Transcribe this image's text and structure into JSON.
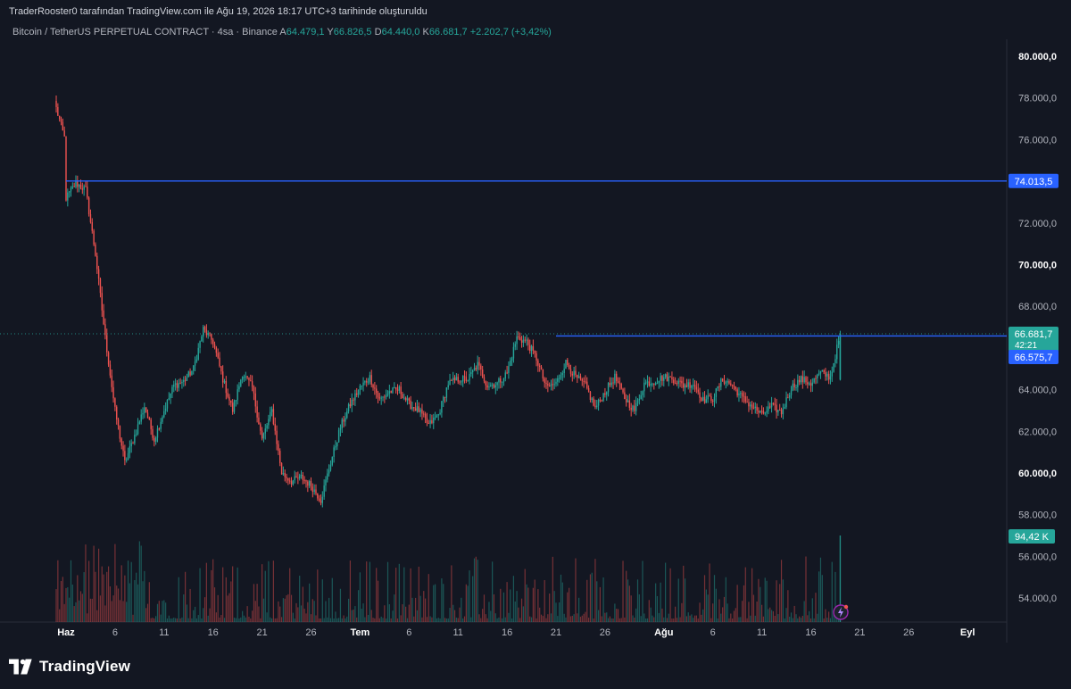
{
  "header": {
    "creator_line": "TraderRooster0 tarafından TradingView.com ile Ağu 19, 2026 18:17 UTC+3 tarihinde oluşturuldu",
    "symbol_line": "Bitcoin / TetherUS PERPETUAL CONTRACT · 4sa · Binance",
    "ohlc": {
      "open_label": "A",
      "open": "64.479,1",
      "high_label": "Y",
      "high": "66.826,5",
      "low_label": "D",
      "low": "64.440,0",
      "close_label": "K",
      "close": "66.681,7",
      "change": "+2.202,7 (+3,42%)"
    }
  },
  "footer": {
    "brand": "TradingView"
  },
  "colors": {
    "background": "#131722",
    "up": "#26a69a",
    "down": "#ef5350",
    "level": "#2962ff"
  },
  "chart_data": {
    "type": "candlestick",
    "y_axis": {
      "ticks": [
        54000,
        56000,
        58000,
        60000,
        62000,
        64000,
        66000,
        68000,
        70000,
        72000,
        74000,
        76000,
        78000,
        80000
      ],
      "tick_labels": [
        "54.000,0",
        "56.000,0",
        "58.000,0",
        "60.000,0",
        "62.000,0",
        "64.000,0",
        "66.000,0",
        "68.000,0",
        "70.000,0",
        "72.000,0",
        "74.000,0",
        "76.000,0",
        "78.000,0",
        "80.000,0"
      ],
      "bold": [
        60000,
        70000,
        80000
      ]
    },
    "x_axis": {
      "ticks": [
        "06-01",
        "06-06",
        "06-11",
        "06-16",
        "06-21",
        "06-26",
        "07-01",
        "07-06",
        "07-11",
        "07-16",
        "07-21",
        "07-26",
        "08-01",
        "08-06",
        "08-11",
        "08-16",
        "08-21",
        "08-26",
        "09-01"
      ],
      "tick_labels": [
        "Haz",
        "6",
        "11",
        "16",
        "21",
        "26",
        "Tem",
        "6",
        "11",
        "16",
        "21",
        "26",
        "Ağu",
        "6",
        "11",
        "16",
        "21",
        "26",
        "Eyl"
      ],
      "bold": [
        "Haz",
        "Tem",
        "Ağu",
        "Eyl"
      ]
    },
    "price_path": [
      [
        "05-30",
        77500
      ],
      [
        "05-31",
        75800
      ],
      [
        "06-01",
        73200
      ],
      [
        "06-02",
        73900
      ],
      [
        "06-03",
        73600
      ],
      [
        "06-04",
        70500
      ],
      [
        "06-05",
        66500
      ],
      [
        "06-06",
        63000
      ],
      [
        "06-07",
        60500
      ],
      [
        "06-08",
        61800
      ],
      [
        "06-09",
        63200
      ],
      [
        "06-10",
        61600
      ],
      [
        "06-11",
        63000
      ],
      [
        "06-12",
        64200
      ],
      [
        "06-13",
        64400
      ],
      [
        "06-14",
        65000
      ],
      [
        "06-15",
        66900
      ],
      [
        "06-16",
        66300
      ],
      [
        "06-17",
        64500
      ],
      [
        "06-18",
        63000
      ],
      [
        "06-19",
        64800
      ],
      [
        "06-20",
        64100
      ],
      [
        "06-21",
        61600
      ],
      [
        "06-22",
        63000
      ],
      [
        "06-23",
        60000
      ],
      [
        "06-24",
        59600
      ],
      [
        "06-25",
        59800
      ],
      [
        "06-26",
        59400
      ],
      [
        "06-27",
        58700
      ],
      [
        "06-28",
        60500
      ],
      [
        "06-29",
        62200
      ],
      [
        "06-30",
        63300
      ],
      [
        "07-01",
        64100
      ],
      [
        "07-02",
        64600
      ],
      [
        "07-03",
        63500
      ],
      [
        "07-04",
        63900
      ],
      [
        "07-05",
        64000
      ],
      [
        "07-06",
        63300
      ],
      [
        "07-07",
        63000
      ],
      [
        "07-08",
        62300
      ],
      [
        "07-09",
        62800
      ],
      [
        "07-10",
        64300
      ],
      [
        "07-11",
        64500
      ],
      [
        "07-12",
        64500
      ],
      [
        "07-13",
        65200
      ],
      [
        "07-14",
        64200
      ],
      [
        "07-15",
        64300
      ],
      [
        "07-16",
        64800
      ],
      [
        "07-17",
        66500
      ],
      [
        "07-18",
        66300
      ],
      [
        "07-19",
        65500
      ],
      [
        "07-20",
        64100
      ],
      [
        "07-21",
        64300
      ],
      [
        "07-22",
        65300
      ],
      [
        "07-23",
        64600
      ],
      [
        "07-24",
        64200
      ],
      [
        "07-25",
        63100
      ],
      [
        "07-26",
        63900
      ],
      [
        "07-27",
        64600
      ],
      [
        "07-28",
        63600
      ],
      [
        "07-29",
        63000
      ],
      [
        "07-30",
        64300
      ],
      [
        "07-31",
        64400
      ],
      [
        "08-01",
        64600
      ],
      [
        "08-02",
        64500
      ],
      [
        "08-03",
        64200
      ],
      [
        "08-04",
        64300
      ],
      [
        "08-05",
        63500
      ],
      [
        "08-06",
        63600
      ],
      [
        "08-07",
        64500
      ],
      [
        "08-08",
        64200
      ],
      [
        "08-09",
        63600
      ],
      [
        "08-10",
        63200
      ],
      [
        "08-11",
        62800
      ],
      [
        "08-12",
        63200
      ],
      [
        "08-13",
        62900
      ],
      [
        "08-14",
        64100
      ],
      [
        "08-15",
        64500
      ],
      [
        "08-16",
        64300
      ],
      [
        "08-17",
        64800
      ],
      [
        "08-18",
        64600
      ],
      [
        "08-19",
        66680
      ]
    ],
    "horizontal_lines": [
      {
        "start": "06-01",
        "price": 74013.5,
        "label": "74.013,5"
      },
      {
        "start": "07-21",
        "price": 66575.7,
        "label": "66.575,7"
      }
    ],
    "last_price": {
      "price": 66681.7,
      "label": "66.681,7",
      "countdown": "42:21"
    },
    "volume": {
      "last_label": "94,42 K"
    }
  }
}
